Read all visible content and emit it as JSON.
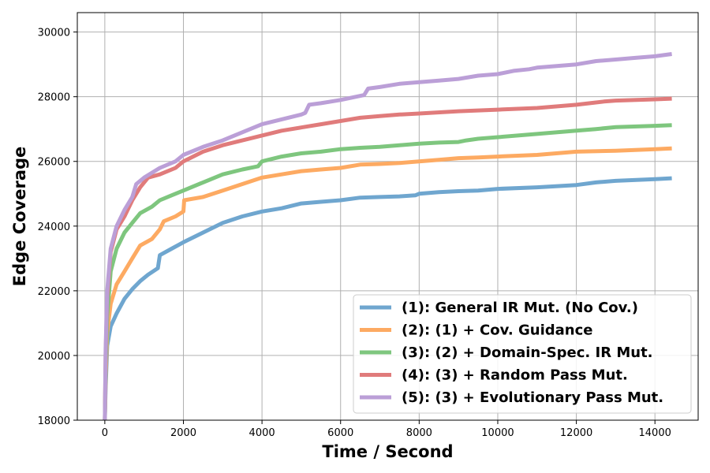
{
  "chart_data": {
    "type": "line",
    "xlabel": "Time / Second",
    "ylabel": "Edge Coverage",
    "xlim": [
      -700,
      15100
    ],
    "ylim": [
      18000,
      30600
    ],
    "xticks": [
      0,
      2000,
      4000,
      6000,
      8000,
      10000,
      12000,
      14000
    ],
    "yticks": [
      18000,
      20000,
      22000,
      24000,
      26000,
      28000,
      30000
    ],
    "grid": true,
    "legend_position": "lower-right",
    "series": [
      {
        "name": "(1): General IR Mut. (No Cov.)",
        "color": "#6fa6cf",
        "points": [
          [
            0,
            18000
          ],
          [
            20,
            19000
          ],
          [
            60,
            20300
          ],
          [
            150,
            20900
          ],
          [
            300,
            21300
          ],
          [
            500,
            21750
          ],
          [
            700,
            22050
          ],
          [
            900,
            22300
          ],
          [
            1100,
            22500
          ],
          [
            1350,
            22700
          ],
          [
            1400,
            23100
          ],
          [
            1700,
            23300
          ],
          [
            2000,
            23500
          ],
          [
            2500,
            23800
          ],
          [
            3000,
            24100
          ],
          [
            3500,
            24300
          ],
          [
            4000,
            24450
          ],
          [
            4500,
            24550
          ],
          [
            5000,
            24700
          ],
          [
            5500,
            24750
          ],
          [
            6000,
            24800
          ],
          [
            6500,
            24880
          ],
          [
            7000,
            24900
          ],
          [
            7500,
            24920
          ],
          [
            7900,
            24950
          ],
          [
            8000,
            25000
          ],
          [
            8500,
            25050
          ],
          [
            9000,
            25080
          ],
          [
            9500,
            25100
          ],
          [
            10000,
            25150
          ],
          [
            11000,
            25200
          ],
          [
            12000,
            25270
          ],
          [
            12500,
            25350
          ],
          [
            13000,
            25400
          ],
          [
            14000,
            25450
          ],
          [
            14430,
            25480
          ]
        ]
      },
      {
        "name": "(2): (1) + Cov. Guidance",
        "color": "#fdaa62",
        "points": [
          [
            0,
            18000
          ],
          [
            20,
            19300
          ],
          [
            60,
            20700
          ],
          [
            150,
            21600
          ],
          [
            300,
            22200
          ],
          [
            500,
            22600
          ],
          [
            700,
            23000
          ],
          [
            900,
            23400
          ],
          [
            1200,
            23600
          ],
          [
            1400,
            23900
          ],
          [
            1500,
            24150
          ],
          [
            1800,
            24300
          ],
          [
            2000,
            24450
          ],
          [
            2020,
            24800
          ],
          [
            2500,
            24900
          ],
          [
            3000,
            25100
          ],
          [
            3500,
            25300
          ],
          [
            4000,
            25500
          ],
          [
            4500,
            25600
          ],
          [
            5000,
            25700
          ],
          [
            5500,
            25750
          ],
          [
            6000,
            25800
          ],
          [
            6500,
            25900
          ],
          [
            7000,
            25920
          ],
          [
            7500,
            25950
          ],
          [
            8000,
            26000
          ],
          [
            8500,
            26050
          ],
          [
            9000,
            26100
          ],
          [
            9500,
            26120
          ],
          [
            10000,
            26150
          ],
          [
            11000,
            26200
          ],
          [
            12000,
            26300
          ],
          [
            13000,
            26330
          ],
          [
            14000,
            26380
          ],
          [
            14430,
            26400
          ]
        ]
      },
      {
        "name": "(3): (2) + Domain-Spec. IR Mut.",
        "color": "#7ec67e",
        "points": [
          [
            0,
            18000
          ],
          [
            20,
            19600
          ],
          [
            60,
            21200
          ],
          [
            150,
            22600
          ],
          [
            300,
            23300
          ],
          [
            500,
            23800
          ],
          [
            700,
            24100
          ],
          [
            900,
            24400
          ],
          [
            1200,
            24600
          ],
          [
            1400,
            24800
          ],
          [
            1700,
            24950
          ],
          [
            2000,
            25100
          ],
          [
            2500,
            25350
          ],
          [
            3000,
            25600
          ],
          [
            3500,
            25750
          ],
          [
            3900,
            25850
          ],
          [
            4000,
            26000
          ],
          [
            4500,
            26150
          ],
          [
            5000,
            26250
          ],
          [
            5500,
            26300
          ],
          [
            6000,
            26380
          ],
          [
            6500,
            26420
          ],
          [
            7000,
            26450
          ],
          [
            7500,
            26500
          ],
          [
            8000,
            26550
          ],
          [
            8500,
            26580
          ],
          [
            9000,
            26600
          ],
          [
            9200,
            26650
          ],
          [
            9500,
            26700
          ],
          [
            10000,
            26750
          ],
          [
            11000,
            26850
          ],
          [
            12000,
            26950
          ],
          [
            12500,
            27000
          ],
          [
            13000,
            27060
          ],
          [
            14000,
            27100
          ],
          [
            14430,
            27120
          ]
        ]
      },
      {
        "name": "(4): (3) + Random Pass Mut.",
        "color": "#e07b7b",
        "points": [
          [
            0,
            18000
          ],
          [
            20,
            20000
          ],
          [
            60,
            21800
          ],
          [
            150,
            23200
          ],
          [
            300,
            23900
          ],
          [
            500,
            24300
          ],
          [
            700,
            24800
          ],
          [
            900,
            25200
          ],
          [
            1100,
            25500
          ],
          [
            1400,
            25600
          ],
          [
            1800,
            25800
          ],
          [
            2000,
            26000
          ],
          [
            2500,
            26300
          ],
          [
            3000,
            26500
          ],
          [
            3500,
            26650
          ],
          [
            4000,
            26800
          ],
          [
            4500,
            26950
          ],
          [
            5000,
            27050
          ],
          [
            5500,
            27150
          ],
          [
            6000,
            27250
          ],
          [
            6500,
            27350
          ],
          [
            7000,
            27400
          ],
          [
            7500,
            27450
          ],
          [
            8000,
            27480
          ],
          [
            9000,
            27550
          ],
          [
            10000,
            27600
          ],
          [
            11000,
            27650
          ],
          [
            12000,
            27750
          ],
          [
            12700,
            27850
          ],
          [
            13000,
            27880
          ],
          [
            14000,
            27920
          ],
          [
            14430,
            27940
          ]
        ]
      },
      {
        "name": "(5): (3) + Evolutionary Pass Mut.",
        "color": "#bb9fd7",
        "points": [
          [
            0,
            18000
          ],
          [
            20,
            20200
          ],
          [
            60,
            22000
          ],
          [
            150,
            23300
          ],
          [
            300,
            24000
          ],
          [
            500,
            24500
          ],
          [
            700,
            24900
          ],
          [
            800,
            25300
          ],
          [
            1000,
            25500
          ],
          [
            1400,
            25800
          ],
          [
            1800,
            26000
          ],
          [
            2000,
            26200
          ],
          [
            2500,
            26450
          ],
          [
            3000,
            26650
          ],
          [
            3500,
            26900
          ],
          [
            4000,
            27150
          ],
          [
            4500,
            27300
          ],
          [
            5000,
            27450
          ],
          [
            5100,
            27500
          ],
          [
            5200,
            27750
          ],
          [
            5500,
            27800
          ],
          [
            6000,
            27900
          ],
          [
            6600,
            28050
          ],
          [
            6700,
            28250
          ],
          [
            7000,
            28300
          ],
          [
            7500,
            28400
          ],
          [
            8000,
            28450
          ],
          [
            8500,
            28500
          ],
          [
            9000,
            28550
          ],
          [
            9500,
            28650
          ],
          [
            10000,
            28700
          ],
          [
            10400,
            28800
          ],
          [
            10800,
            28850
          ],
          [
            11000,
            28900
          ],
          [
            12000,
            29000
          ],
          [
            12500,
            29100
          ],
          [
            13000,
            29150
          ],
          [
            13500,
            29200
          ],
          [
            14000,
            29250
          ],
          [
            14430,
            29320
          ]
        ]
      }
    ]
  }
}
